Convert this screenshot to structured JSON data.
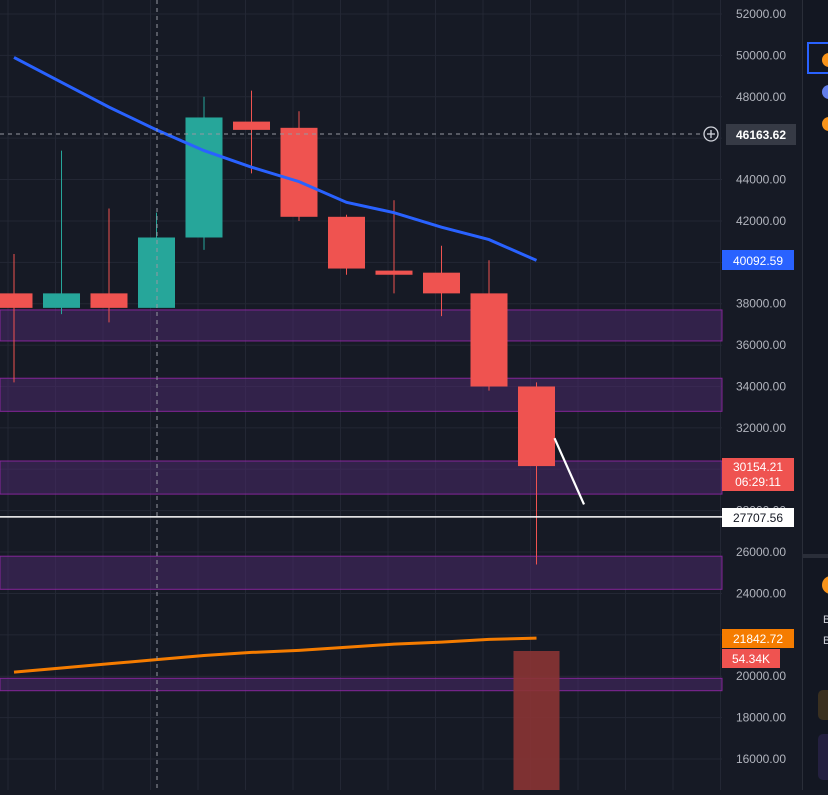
{
  "colors": {
    "background": "#161a25",
    "grid": "#232734",
    "axis_text": "#b2b5be",
    "up": "#26a69a",
    "down": "#ef5350",
    "ma_blue": "#2962ff",
    "ma_orange": "#f57c00",
    "zone": "#4a2a6a",
    "zone_border": "#9c27b0",
    "volume": "#8a3434"
  },
  "chart_data": {
    "type": "candlestick",
    "title": "",
    "xlabel": "",
    "ylabel": "",
    "ylim": [
      15000,
      53000
    ],
    "grid": true,
    "y_ticks": [
      "52000.00",
      "50000.00",
      "48000.00",
      "46000.00",
      "44000.00",
      "42000.00",
      "40000.00",
      "38000.00",
      "36000.00",
      "34000.00",
      "32000.00",
      "30000.00",
      "28000.00",
      "26000.00",
      "24000.00",
      "22000.00",
      "20000.00",
      "18000.00",
      "16000.00"
    ],
    "candles": [
      {
        "open": 38500,
        "high": 40400,
        "low": 34200,
        "close": 37800
      },
      {
        "open": 37800,
        "high": 45400,
        "low": 37500,
        "close": 38500
      },
      {
        "open": 38500,
        "high": 42600,
        "low": 37100,
        "close": 37800
      },
      {
        "open": 37800,
        "high": 42400,
        "low": 37800,
        "close": 41200
      },
      {
        "open": 41200,
        "high": 48000,
        "low": 40600,
        "close": 47000
      },
      {
        "open": 46800,
        "high": 48300,
        "low": 44300,
        "close": 46400
      },
      {
        "open": 46500,
        "high": 47300,
        "low": 42000,
        "close": 42200
      },
      {
        "open": 42200,
        "high": 42300,
        "low": 39400,
        "close": 39700
      },
      {
        "open": 39600,
        "high": 43000,
        "low": 38500,
        "close": 39400
      },
      {
        "open": 39500,
        "high": 40800,
        "low": 37400,
        "close": 38500
      },
      {
        "open": 38500,
        "high": 40100,
        "low": 33800,
        "close": 34000
      },
      {
        "open": 34000,
        "high": 34200,
        "low": 25400,
        "close": 30154.21
      }
    ],
    "ma_fast": [
      49900,
      48700,
      47500,
      46400,
      45400,
      44600,
      43900,
      42900,
      42400,
      41700,
      41100,
      40092.59
    ],
    "ma_slow": [
      20200,
      20400,
      20600,
      20800,
      21000,
      21150,
      21250,
      21400,
      21550,
      21650,
      21780,
      21842.72
    ],
    "projection": {
      "from": 31500,
      "to": 28300
    },
    "zones": [
      [
        36200,
        37700
      ],
      [
        32800,
        34400
      ],
      [
        28800,
        30400
      ],
      [
        24200,
        25800
      ],
      [
        19300,
        19900
      ]
    ],
    "volume_last": "54.34K",
    "crosshair_price": "46163.62",
    "horizontal_line": "27707.56",
    "price_labels": {
      "ma_fast": "40092.59",
      "last_price": "30154.21",
      "countdown": "06:29:11",
      "ma_slow": "21842.72",
      "volume": "54.34K"
    },
    "right_panel_fragments": [
      "B",
      "B"
    ]
  }
}
